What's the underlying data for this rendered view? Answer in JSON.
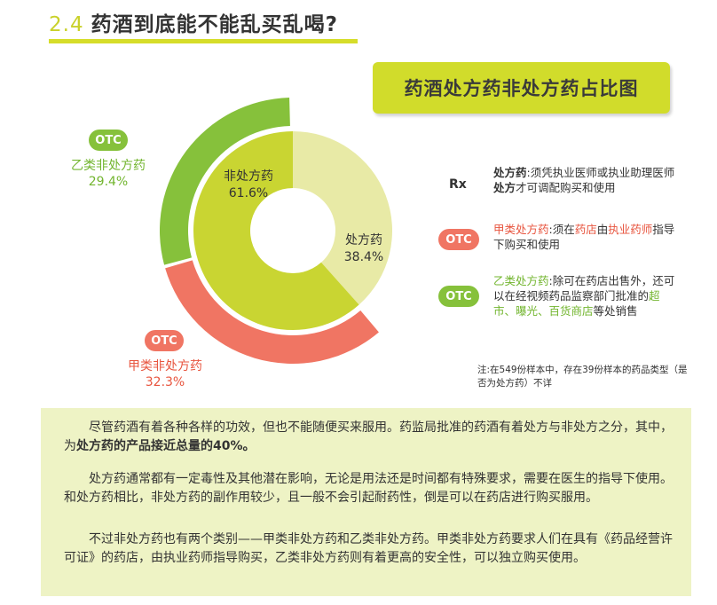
{
  "header": {
    "number": "2.4",
    "title": "药酒到底能不能乱买乱喝?"
  },
  "chart_title": "药酒处方药非处方药占比图",
  "chart_data": [
    {
      "type": "pie",
      "ring": "inner",
      "slices": [
        {
          "label": "非处方药",
          "value": 61.6,
          "value_text": "61.6%",
          "color": "#c9d532"
        },
        {
          "label": "处方药",
          "value": 38.4,
          "value_text": "38.4%",
          "color": "#e8eaa6"
        }
      ]
    },
    {
      "type": "pie",
      "ring": "outer",
      "slices": [
        {
          "label": "乙类非处方药",
          "value": 29.4,
          "value_text": "29.4%",
          "color": "#86c13b",
          "badge": "OTC"
        },
        {
          "label": "甲类非处方药",
          "value": 32.3,
          "value_text": "32.3%",
          "color": "#f07563",
          "badge": "OTC"
        }
      ]
    }
  ],
  "legend": {
    "rx": {
      "icon": "Rx",
      "title": "处方药",
      "sep": ":",
      "t1": "须凭执业医师或执业助理医师",
      "t2": "处方",
      "t3": "才可调配购买和使用"
    },
    "otc_a": {
      "icon": "OTC",
      "title": "甲类处方药",
      "sep": ":",
      "t1": "须在",
      "t2": "药店",
      "t3": "由",
      "t4": "执业药师",
      "t5": "指导下购买和使用"
    },
    "otc_b": {
      "icon": "OTC",
      "title": "乙类处方药",
      "sep": ":",
      "t1": "除可在药店出售外，还可以在经视频药品监察部门批准的",
      "t2": "超市、曝光、百货商店",
      "t3": "等处销售"
    }
  },
  "note": "注:在549份样本中，存在39份样本的药品类型（是否为处方药）不详",
  "paragraphs": {
    "p1a": "尽管药酒有着各种各样的功效，但也不能随便买来服用。药监局批准的药酒有着处方与非处方之分，其中，为",
    "p1b": "处方药的产品接近总量的40%。",
    "p2": "处方药通常都有一定毒性及其他潜在影响，无论是用法还是时间都有特殊要求，需要在医生的指导下使用。和处方药相比，非处方药的副作用较少，且一般不会引起耐药性，倒是可以在药店进行购买服用。",
    "p3": "不过非处方药也有两个类别——甲类非处方药和乙类非处方药。甲类非处方药要求人们在具有《药品经营许可证》的药店，由执业药师指导购买，乙类非处方药则有着更高的安全性，可以独立购买使用。"
  },
  "colors": {
    "accent": "#d1dc2b",
    "red": "#f07563",
    "green": "#86c13b",
    "panel": "#eef3c5"
  }
}
